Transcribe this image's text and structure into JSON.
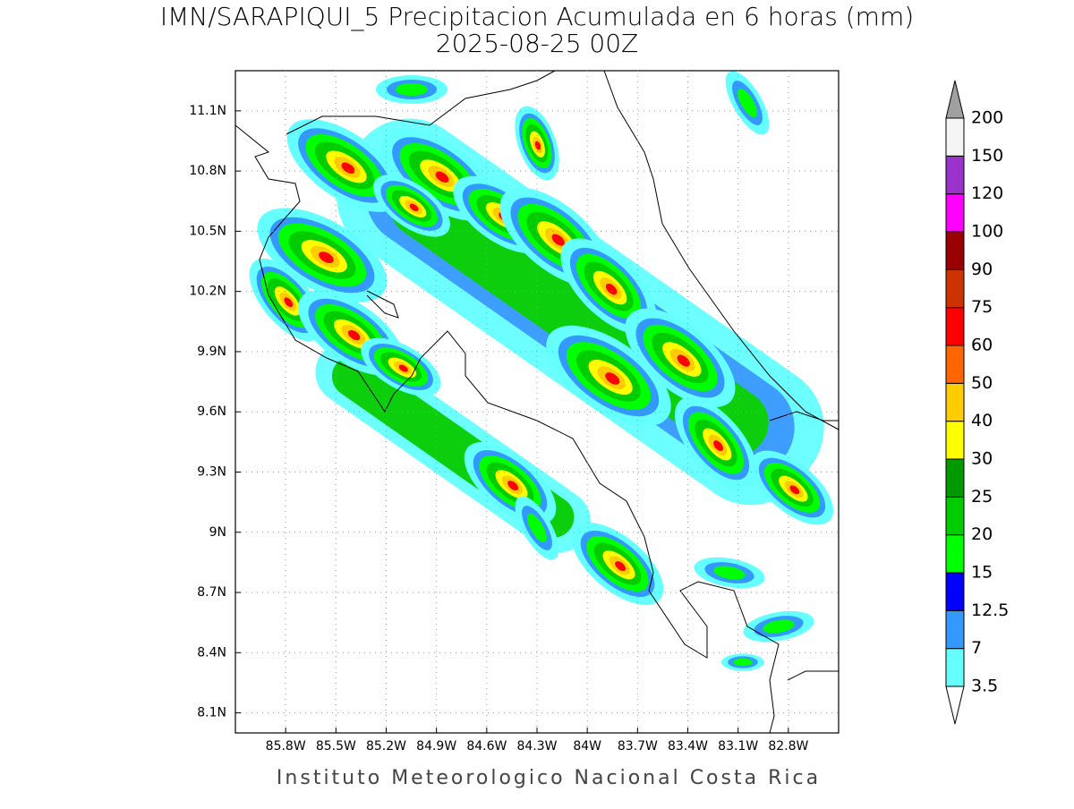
{
  "title": "IMN/SARAPIQUI_5 Precipitacion Acumulada en 6 horas (mm)",
  "subtitle": "2025-08-25 00Z",
  "footer": "Instituto Meteorologico Nacional Costa Rica",
  "map": {
    "xlim": [
      -86.1,
      -82.5
    ],
    "ylim": [
      8.0,
      11.3
    ],
    "grid": true,
    "xticks": [
      {
        "value": -85.8,
        "label": "85.8W"
      },
      {
        "value": -85.5,
        "label": "85.5W"
      },
      {
        "value": -85.2,
        "label": "85.2W"
      },
      {
        "value": -84.9,
        "label": "84.9W"
      },
      {
        "value": -84.6,
        "label": "84.6W"
      },
      {
        "value": -84.3,
        "label": "84.3W"
      },
      {
        "value": -84,
        "label": "84W"
      },
      {
        "value": -83.7,
        "label": "83.7W"
      },
      {
        "value": -83.4,
        "label": "83.4W"
      },
      {
        "value": -83.1,
        "label": "83.1W"
      },
      {
        "value": -82.8,
        "label": "82.8W"
      }
    ],
    "yticks": [
      {
        "value": 11.1,
        "label": "11.1N"
      },
      {
        "value": 10.8,
        "label": "10.8N"
      },
      {
        "value": 10.5,
        "label": "10.5N"
      },
      {
        "value": 10.2,
        "label": "10.2N"
      },
      {
        "value": 9.9,
        "label": "9.9N"
      },
      {
        "value": 9.6,
        "label": "9.6N"
      },
      {
        "value": 9.3,
        "label": "9.3N"
      },
      {
        "value": 9,
        "label": "9N"
      },
      {
        "value": 8.7,
        "label": "8.7N"
      },
      {
        "value": 8.4,
        "label": "8.4N"
      },
      {
        "value": 8.1,
        "label": "8.1N"
      }
    ]
  },
  "colorbar": {
    "levels": [
      3.5,
      7,
      12.5,
      15,
      20,
      25,
      30,
      40,
      50,
      60,
      75,
      90,
      100,
      120,
      150,
      200
    ],
    "colors": [
      "#66ffff",
      "#3399ff",
      "#0000ff",
      "#00ff00",
      "#00cc00",
      "#009900",
      "#ffff00",
      "#ffcc00",
      "#ff6600",
      "#ff0000",
      "#cc3300",
      "#990000",
      "#ff00ff",
      "#9933cc",
      "#f5f5f5"
    ],
    "under_color": "#ffffff",
    "over_color": "#a0a0a0"
  }
}
